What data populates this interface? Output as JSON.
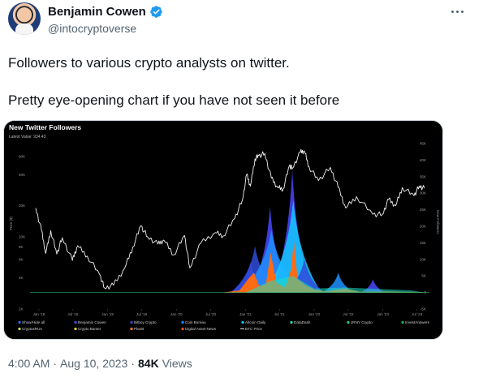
{
  "tweet": {
    "author_name": "Benjamin Cowen",
    "author_handle": "@intocryptoverse",
    "verified": true,
    "text_line1": "Followers to various crypto analysts on twitter.",
    "text_line2": "Pretty eye-opening chart if you have not seen it before",
    "time": "4:00 AM",
    "date": "Aug 10, 2023",
    "separator": "·",
    "views_count": "84K",
    "views_label": "Views",
    "accent_color": "#1d9bf0"
  },
  "chart": {
    "title": "New Twitter Followers",
    "subtitle": "Latest Value: 934.43",
    "ylabel_left": "Price ($)",
    "ylabel_right": "New Followers"
  },
  "chart_data": {
    "type": "line",
    "title": "New Twitter Followers",
    "subtitle": "Latest Value: 934.43",
    "x_ticks": [
      "Jan '18",
      "Jul '18",
      "Jan '19",
      "Jul '19",
      "Jan '20",
      "Jul '20",
      "Jan '21",
      "Jul '21",
      "Jan '22",
      "Jul '22",
      "Jan '23",
      "Jul '23"
    ],
    "y_left_ticks": [
      "60K",
      "40K",
      "20K",
      "10K",
      "8K",
      "6K",
      "4K",
      "2K"
    ],
    "y_left_label": "Price ($)",
    "y_left_scale": "log",
    "y_right_ticks": [
      "45K",
      "40K",
      "35K",
      "30K",
      "25K",
      "20K",
      "15K",
      "10K",
      "5K",
      "0",
      "-5K"
    ],
    "y_right_label": "New Followers",
    "btc_price": {
      "x": [
        "2017-12-15",
        "2018-01-15",
        "2018-02-06",
        "2018-03-05",
        "2018-04-06",
        "2018-05-05",
        "2018-06-28",
        "2018-07-25",
        "2018-09-15",
        "2018-11-20",
        "2018-12-15",
        "2019-02-01",
        "2019-04-02",
        "2019-05-15",
        "2019-06-26",
        "2019-08-01",
        "2019-09-25",
        "2019-10-26",
        "2019-12-18",
        "2020-02-13",
        "2020-03-12",
        "2020-05-10",
        "2020-07-26",
        "2020-09-05",
        "2020-11-05",
        "2020-12-17",
        "2021-01-08",
        "2021-01-28",
        "2021-02-21",
        "2021-03-13",
        "2021-04-14",
        "2021-05-19",
        "2021-06-22",
        "2021-07-20",
        "2021-08-23",
        "2021-09-07",
        "2021-10-20",
        "2021-11-10",
        "2021-12-04",
        "2022-01-24",
        "2022-03-28",
        "2022-05-09",
        "2022-06-18",
        "2022-08-14",
        "2022-11-09",
        "2022-12-30",
        "2023-01-31",
        "2023-03-10",
        "2023-04-14",
        "2023-06-15",
        "2023-07-13",
        "2023-08-09"
      ],
      "y": [
        19000,
        11500,
        6900,
        11500,
        6800,
        9800,
        5900,
        8200,
        6500,
        4300,
        3200,
        3400,
        5000,
        8000,
        12800,
        10000,
        8500,
        9300,
        6700,
        10300,
        5000,
        8700,
        11000,
        10200,
        15000,
        23000,
        40000,
        31000,
        57000,
        61000,
        64000,
        37000,
        30000,
        29000,
        49000,
        46000,
        66000,
        68000,
        48000,
        35000,
        47000,
        30000,
        19000,
        24500,
        16500,
        16500,
        23000,
        20000,
        30000,
        25000,
        31000,
        29500
      ]
    },
    "legend": [
      {
        "name": "Show/Hide all",
        "color": "#2a6df4"
      },
      {
        "name": "Benjamin Cowen",
        "color": "#4b47ff"
      },
      {
        "name": "Bitboy Crypto",
        "color": "#2f4bd8"
      },
      {
        "name": "Coin Bureau",
        "color": "#1e90ff"
      },
      {
        "name": "Altcoin Daily",
        "color": "#14c8ff"
      },
      {
        "name": "DataDash",
        "color": "#19e0c2"
      },
      {
        "name": "JRNY Crypto",
        "color": "#2ccf6f"
      },
      {
        "name": "InvestAnswers",
        "color": "#22b24a"
      },
      {
        "name": "CryptosRUs",
        "color": "#d3e23b"
      },
      {
        "name": "Crypto Banter",
        "color": "#f2d21b"
      },
      {
        "name": "PlanB",
        "color": "#ff7a1a"
      },
      {
        "name": "Digital Asset News",
        "color": "#f2541b"
      },
      {
        "name": "BTC Price",
        "color": "#e0e0e0"
      }
    ],
    "grid": false,
    "legend_position": "bottom"
  }
}
